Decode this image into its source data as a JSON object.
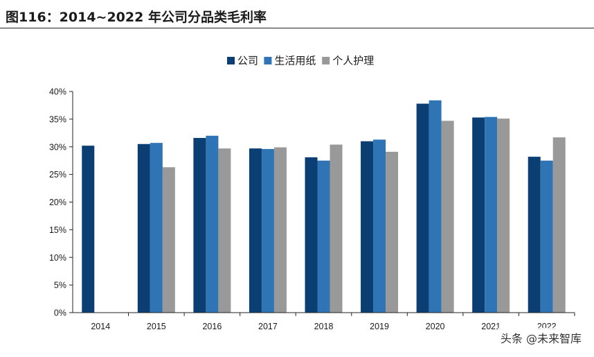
{
  "figure": {
    "title": "图116：2014~2022 年公司分品类毛利率",
    "watermark": "头条 @未来智库"
  },
  "chart_data": {
    "type": "bar",
    "title": "",
    "xlabel": "",
    "ylabel": "",
    "categories": [
      "2014",
      "2015",
      "2016",
      "2017",
      "2018",
      "2019",
      "2020",
      "2021",
      "2022"
    ],
    "ylim": [
      0,
      40
    ],
    "yticks": [
      "0%",
      "5%",
      "10%",
      "15%",
      "20%",
      "25%",
      "30%",
      "35%",
      "40%"
    ],
    "grid": false,
    "legend_position": "top-center",
    "series": [
      {
        "name": "公司",
        "color": "#0b3f73",
        "values": [
          30.2,
          30.5,
          31.6,
          29.7,
          28.1,
          31.0,
          37.8,
          35.3,
          28.2
        ]
      },
      {
        "name": "生活用纸",
        "color": "#2f74b5",
        "values": [
          null,
          30.7,
          32.0,
          29.6,
          27.5,
          31.3,
          38.4,
          35.4,
          27.5
        ]
      },
      {
        "name": "个人护理",
        "color": "#999999",
        "values": [
          null,
          26.3,
          29.7,
          29.9,
          30.4,
          29.1,
          34.7,
          35.1,
          31.7
        ]
      }
    ]
  }
}
